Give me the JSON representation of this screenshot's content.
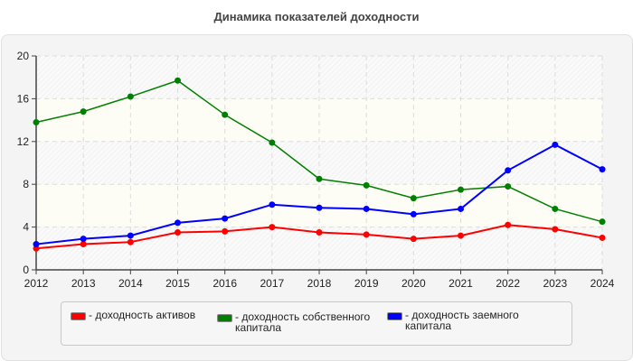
{
  "chart_data": {
    "type": "line",
    "title": "Динамика показателей доходности",
    "xlabel": "",
    "ylabel": "",
    "categories": [
      "2012",
      "2013",
      "2014",
      "2015",
      "2016",
      "2017",
      "2018",
      "2019",
      "2020",
      "2021",
      "2022",
      "2023",
      "2024"
    ],
    "ylim": [
      0,
      20
    ],
    "yticks": [
      "0",
      "4",
      "8",
      "12",
      "16",
      "20"
    ],
    "grid": true,
    "legend_position": "bottom",
    "series": [
      {
        "name": "- доходность активов",
        "color": "#ff0000",
        "values": [
          2.0,
          2.4,
          2.6,
          3.5,
          3.6,
          4.0,
          3.5,
          3.3,
          2.9,
          3.2,
          4.2,
          3.8,
          3.0
        ]
      },
      {
        "name": "- доходность собственного капитала",
        "color": "#008000",
        "values": [
          13.8,
          14.8,
          16.2,
          17.7,
          14.5,
          11.9,
          8.5,
          7.9,
          6.7,
          7.5,
          7.8,
          5.7,
          4.5
        ]
      },
      {
        "name": "- доходность заемного капитала",
        "color": "#0000ff",
        "values": [
          2.4,
          2.9,
          3.2,
          4.4,
          4.8,
          6.1,
          5.8,
          5.7,
          5.2,
          5.7,
          9.3,
          11.7,
          9.4
        ]
      }
    ]
  }
}
